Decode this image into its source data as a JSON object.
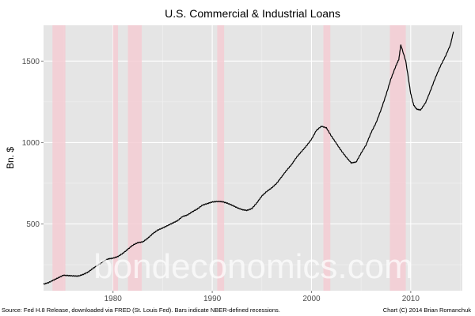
{
  "chart_data": {
    "type": "line",
    "title": "U.S. Commercial & Industrial Loans",
    "xlabel": "",
    "ylabel": "Bn. $",
    "xlim": [
      1973.0,
      2015.2
    ],
    "ylim": [
      90,
      1720
    ],
    "x_ticks": [
      1980,
      1990,
      2000,
      2010
    ],
    "y_ticks": [
      500,
      1000,
      1500
    ],
    "grid": true,
    "legend": "none",
    "line_color": "#000000",
    "panel_color": "#e5e5e5",
    "recession_color": "#f4cdd3",
    "recessions": [
      {
        "start": 1973.9,
        "end": 1975.2
      },
      {
        "start": 1980.0,
        "end": 1980.5
      },
      {
        "start": 1981.5,
        "end": 1982.9
      },
      {
        "start": 1990.5,
        "end": 1991.2
      },
      {
        "start": 2001.2,
        "end": 2001.9
      },
      {
        "start": 2007.9,
        "end": 2009.5
      }
    ],
    "series": [
      {
        "x": [
          1973.0,
          1973.5,
          1974.0,
          1974.5,
          1975.0,
          1975.5,
          1976.0,
          1976.5,
          1977.0,
          1977.5,
          1978.0,
          1978.5,
          1979.0,
          1979.5,
          1980.0,
          1980.5,
          1981.0,
          1981.5,
          1982.0,
          1982.5,
          1983.0,
          1983.5,
          1984.0,
          1984.5,
          1985.0,
          1985.5,
          1986.0,
          1986.5,
          1987.0,
          1987.5,
          1988.0,
          1988.5,
          1989.0,
          1989.5,
          1990.0,
          1990.5,
          1991.0,
          1991.5,
          1992.0,
          1992.5,
          1993.0,
          1993.5,
          1994.0,
          1994.5,
          1995.0,
          1995.5,
          1996.0,
          1996.5,
          1997.0,
          1997.5,
          1998.0,
          1998.5,
          1999.0,
          1999.5,
          2000.0,
          2000.5,
          2001.0,
          2001.5,
          2002.0,
          2002.5,
          2003.0,
          2003.5,
          2004.0,
          2004.5,
          2005.0,
          2005.5,
          2006.0,
          2006.5,
          2007.0,
          2007.5,
          2008.0,
          2008.5,
          2008.8,
          2009.0,
          2009.5,
          2010.0,
          2010.3,
          2010.6,
          2011.0,
          2011.5,
          2012.0,
          2012.5,
          2013.0,
          2013.5,
          2014.0,
          2014.3
        ],
        "y": [
          130,
          140,
          155,
          170,
          185,
          183,
          181,
          180,
          190,
          205,
          228,
          248,
          270,
          285,
          290,
          300,
          320,
          345,
          370,
          385,
          390,
          412,
          440,
          462,
          475,
          490,
          505,
          520,
          545,
          555,
          575,
          592,
          615,
          625,
          635,
          638,
          637,
          628,
          615,
          600,
          588,
          583,
          595,
          630,
          672,
          700,
          722,
          750,
          790,
          830,
          865,
          910,
          945,
          980,
          1020,
          1075,
          1100,
          1090,
          1040,
          995,
          950,
          910,
          875,
          880,
          935,
          985,
          1060,
          1120,
          1200,
          1290,
          1390,
          1470,
          1510,
          1600,
          1500,
          1300,
          1230,
          1205,
          1200,
          1245,
          1320,
          1400,
          1470,
          1530,
          1600,
          1680
        ]
      }
    ]
  },
  "footer": {
    "source": "Source: Fed H.8 Release, downloaded via FRED (St. Louis Fed). Bars indicate NBER-defined recessions.",
    "credit": "Chart (C) 2014 Brian Romanchuk"
  },
  "watermark": "bondeconomics.com"
}
